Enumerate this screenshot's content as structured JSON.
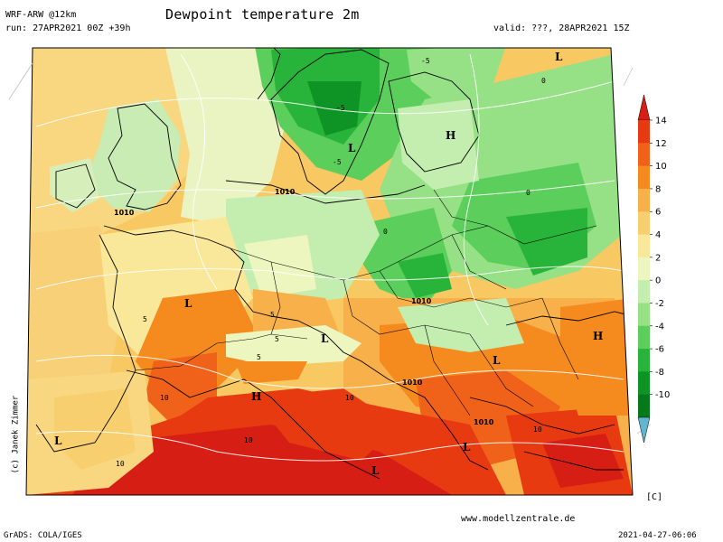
{
  "header": {
    "model": "WRF-ARW @12km",
    "run": "run: 27APR2021 00Z +39h",
    "title": "Dewpoint temperature 2m",
    "valid": "valid: ???, 28APR2021 15Z"
  },
  "footer": {
    "website": "www.modellzentrale.de",
    "grads": "GrADS: COLA/IGES",
    "timestamp": "2021-04-27-06:06",
    "copyright": "(c) Janek Zimmer"
  },
  "colorbar": {
    "unit": "[C]",
    "ticks": [
      "14",
      "12",
      "10",
      "8",
      "6",
      "4",
      "2",
      "0",
      "-2",
      "-4",
      "-6",
      "-8",
      "-10"
    ],
    "colors": [
      "#d71e14",
      "#e83a10",
      "#f0621a",
      "#f58a1e",
      "#f8b04a",
      "#f8cf6e",
      "#f9e89a",
      "#eef6c0",
      "#c4edb0",
      "#96e086",
      "#5cce5c",
      "#28b43a",
      "#0e9424",
      "#067a1a",
      "#62b6d0"
    ]
  },
  "pressure_labels": [
    "1010",
    "1010",
    "1010",
    "1010",
    "1010"
  ],
  "isobar_markers": [
    {
      "type": "H",
      "name": "high-scandinavia"
    },
    {
      "type": "H",
      "name": "high-alps"
    },
    {
      "type": "H",
      "name": "high-east"
    },
    {
      "type": "L",
      "name": "low-baltic-north"
    },
    {
      "type": "L",
      "name": "low-sweden"
    },
    {
      "type": "L",
      "name": "low-france"
    },
    {
      "type": "L",
      "name": "low-germany"
    },
    {
      "type": "L",
      "name": "low-hungary"
    },
    {
      "type": "L",
      "name": "low-balkans"
    },
    {
      "type": "L",
      "name": "low-adriatic"
    },
    {
      "type": "L",
      "name": "low-spain"
    }
  ],
  "contour_labels": [
    "-5",
    "-5",
    "-5",
    "5",
    "5",
    "5",
    "5",
    "10",
    "10",
    "10",
    "10",
    "10",
    "0",
    "0",
    "0"
  ]
}
